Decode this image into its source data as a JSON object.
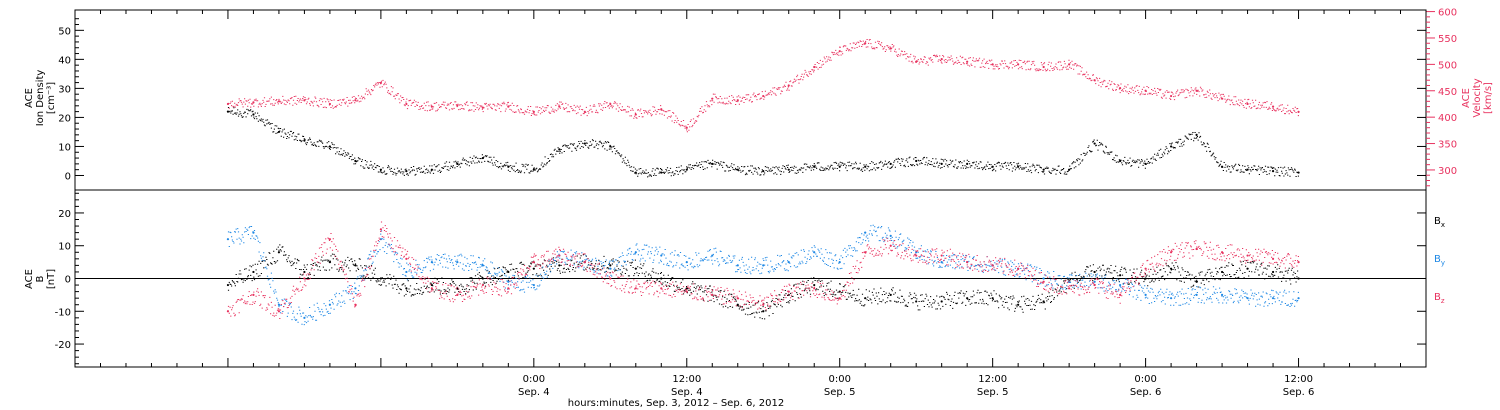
{
  "chart_data": [
    {
      "type": "scatter",
      "panel": "top",
      "left_axis": {
        "label_lines": [
          "ACE",
          "Ion Density",
          "[cm⁻³]"
        ],
        "ylim": [
          -5,
          57
        ],
        "ticks": [
          0,
          10,
          20,
          30,
          40,
          50
        ],
        "color": "#000000"
      },
      "right_axis": {
        "label_lines": [
          "ACE",
          "Velocity",
          "[km/s]"
        ],
        "ylim": [
          262,
          603
        ],
        "ticks": [
          300,
          350,
          400,
          450,
          500,
          550,
          600
        ],
        "color": "#e8325f"
      },
      "series": [
        {
          "axis": "left",
          "color": "#000000",
          "x": [
            0,
            2,
            4,
            6,
            8,
            10,
            12,
            14,
            16,
            18,
            20,
            22,
            24,
            26,
            28,
            30,
            32,
            34,
            36,
            38,
            40,
            42,
            44,
            46,
            48,
            50,
            52,
            54,
            56,
            58,
            60,
            62,
            64,
            66,
            68,
            70,
            72,
            74,
            76,
            78,
            80,
            82,
            84
          ],
          "values": [
            22,
            21,
            15,
            12,
            10,
            5,
            2,
            1.5,
            2,
            4,
            6,
            3,
            2,
            9,
            11,
            10,
            1,
            1,
            2,
            4,
            2,
            1.5,
            2,
            3,
            3,
            3,
            4,
            5,
            4,
            4,
            3,
            3,
            2,
            2,
            11,
            5,
            4,
            10,
            14,
            3,
            2,
            1.5,
            1
          ]
        },
        {
          "axis": "right",
          "color": "#e8325f",
          "x": [
            0,
            2,
            4,
            6,
            8,
            10,
            12,
            14,
            16,
            18,
            20,
            22,
            24,
            26,
            28,
            30,
            32,
            34,
            36,
            38,
            40,
            42,
            44,
            46,
            48,
            50,
            52,
            54,
            56,
            58,
            60,
            62,
            64,
            66,
            68,
            70,
            72,
            74,
            76,
            78,
            80,
            82,
            84
          ],
          "values": [
            425,
            428,
            430,
            432,
            425,
            432,
            465,
            425,
            420,
            422,
            418,
            420,
            410,
            420,
            410,
            425,
            405,
            415,
            380,
            435,
            432,
            440,
            460,
            495,
            525,
            540,
            530,
            505,
            510,
            505,
            500,
            500,
            495,
            500,
            470,
            455,
            450,
            440,
            450,
            435,
            425,
            420,
            410
          ]
        }
      ]
    },
    {
      "type": "scatter",
      "panel": "bottom",
      "left_axis": {
        "label_lines": [
          "ACE",
          "B",
          "[nT]"
        ],
        "ylim": [
          -27,
          27
        ],
        "ticks": [
          -20,
          -10,
          0,
          10,
          20
        ]
      },
      "legend": [
        "Bx",
        "By",
        "Bz"
      ],
      "zero_line": true,
      "series": [
        {
          "name": "Bx",
          "color": "#000000",
          "x": [
            0,
            2,
            4,
            6,
            8,
            10,
            12,
            14,
            16,
            18,
            20,
            22,
            24,
            26,
            28,
            30,
            32,
            34,
            36,
            38,
            40,
            42,
            44,
            46,
            48,
            50,
            52,
            54,
            56,
            58,
            60,
            62,
            64,
            66,
            68,
            70,
            72,
            74,
            76,
            78,
            80,
            82,
            84
          ],
          "values": [
            -2,
            2,
            8,
            2,
            5,
            4,
            0,
            -3,
            -2,
            -3,
            0,
            2,
            3,
            4,
            5,
            4,
            3,
            0,
            -3,
            -5,
            -8,
            -10,
            -5,
            -2,
            -4,
            -6,
            -5,
            -7,
            -7,
            -6,
            -6,
            -8,
            -7,
            -1,
            2,
            1,
            0,
            3,
            -1,
            2,
            3,
            2,
            0
          ]
        },
        {
          "name": "By",
          "color": "#1e88e5",
          "x": [
            0,
            2,
            4,
            6,
            8,
            10,
            12,
            14,
            16,
            18,
            20,
            22,
            24,
            26,
            28,
            30,
            32,
            34,
            36,
            38,
            40,
            42,
            44,
            46,
            48,
            50,
            52,
            54,
            56,
            58,
            60,
            62,
            64,
            66,
            68,
            70,
            72,
            74,
            76,
            78,
            80,
            82,
            84
          ],
          "values": [
            12,
            14,
            -8,
            -12,
            -8,
            -3,
            12,
            2,
            5,
            5,
            4,
            -1,
            -2,
            7,
            5,
            3,
            8,
            7,
            5,
            7,
            4,
            4,
            5,
            8,
            5,
            14,
            13,
            8,
            5,
            5,
            4,
            3,
            0,
            -1,
            -1,
            -2,
            -5,
            -6,
            -5,
            -5,
            -6,
            -6,
            -6
          ]
        },
        {
          "name": "Bz",
          "color": "#e8325f",
          "x": [
            0,
            2,
            4,
            6,
            8,
            10,
            12,
            14,
            16,
            18,
            20,
            22,
            24,
            26,
            28,
            30,
            32,
            34,
            36,
            38,
            40,
            42,
            44,
            46,
            48,
            50,
            52,
            54,
            56,
            58,
            60,
            62,
            64,
            66,
            68,
            70,
            72,
            74,
            76,
            78,
            80,
            82,
            84
          ],
          "values": [
            -10,
            -5,
            -10,
            0,
            12,
            -8,
            15,
            6,
            -3,
            -5,
            -2,
            -3,
            5,
            7,
            5,
            0,
            -3,
            -3,
            -4,
            -5,
            -6,
            -8,
            -4,
            -3,
            -6,
            8,
            10,
            7,
            7,
            5,
            4,
            3,
            -1,
            -3,
            -2,
            -5,
            3,
            8,
            9,
            8,
            7,
            6,
            5
          ]
        }
      ]
    }
  ],
  "labels": {
    "top_left_axis": [
      "ACE",
      "Ion Density",
      "[cm⁻³]"
    ],
    "top_right_axis": [
      "ACE",
      "Velocity",
      "[km/s]"
    ],
    "bottom_left_axis": [
      "ACE",
      "B",
      "[nT]"
    ],
    "legend": [
      {
        "base": "B",
        "sub": "x",
        "color": "#000000"
      },
      {
        "base": "B",
        "sub": "y",
        "color": "#1e88e5"
      },
      {
        "base": "B",
        "sub": "z",
        "color": "#e8325f"
      }
    ],
    "x_tick_labels": [
      {
        "hour": 24,
        "time": "0:00",
        "date": "Sep. 4"
      },
      {
        "hour": 36,
        "time": "12:00",
        "date": "Sep. 4"
      },
      {
        "hour": 48,
        "time": "0:00",
        "date": "Sep. 5"
      },
      {
        "hour": 60,
        "time": "12:00",
        "date": "Sep. 5"
      },
      {
        "hour": 72,
        "time": "0:00",
        "date": "Sep. 6"
      },
      {
        "hour": 84,
        "time": "12:00",
        "date": "Sep. 6"
      }
    ],
    "x_axis_title": "hours:minutes, Sep.  3, 2012 – Sep.  6, 2012",
    "x_range_hours": [
      -12,
      94
    ]
  },
  "colors": {
    "black": "#000000",
    "blue": "#1e88e5",
    "pink": "#e8325f"
  }
}
